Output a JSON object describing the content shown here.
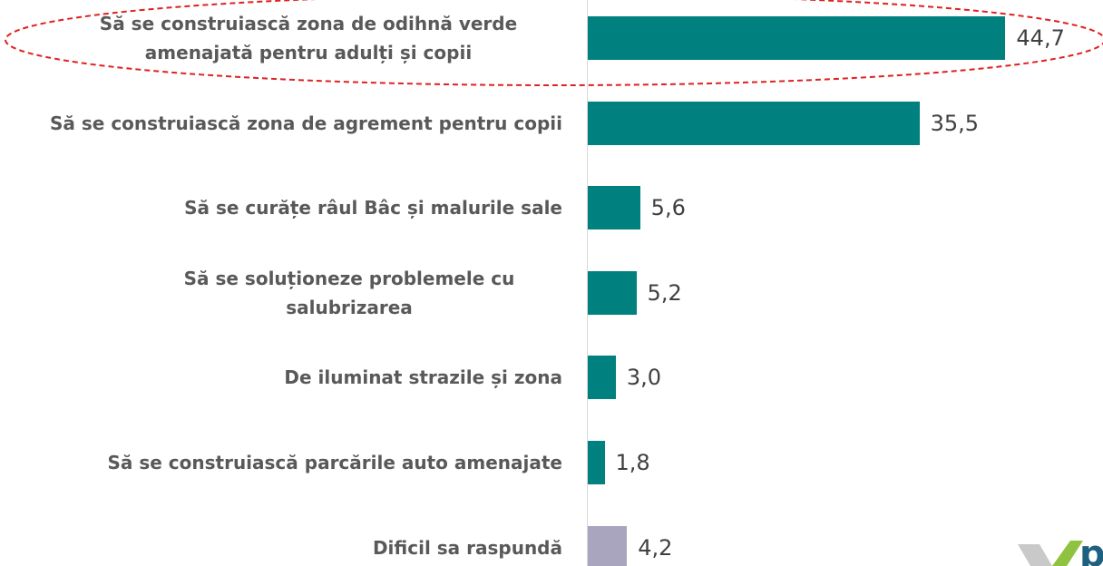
{
  "chart_data": {
    "type": "barh",
    "categories": [
      "Să se construiască zona de odihnă verde amenajată pentru adulți și copii",
      "Să se construiască zona de agrement pentru copii",
      "Să se curățe râul Bâc și malurile sale",
      "Să se soluționeze problemele cu salubrizarea",
      "De iluminat strazile și zona",
      "Să se construiască parcările auto amenajate",
      "Dificil sa raspundă"
    ],
    "values": [
      44.7,
      35.5,
      5.6,
      5.2,
      3.0,
      1.8,
      4.2
    ],
    "value_labels": [
      "44,7",
      "35,5",
      "5,6",
      "5,2",
      "3,0",
      "1,8",
      "4,2"
    ],
    "colors": [
      "#00807e",
      "#00807e",
      "#00807e",
      "#00807e",
      "#00807e",
      "#00807e",
      "#a9a5bf"
    ]
  },
  "logo_text": "pl"
}
